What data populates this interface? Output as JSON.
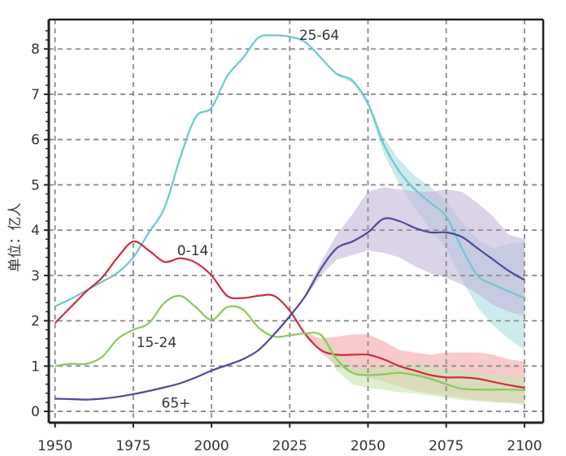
{
  "chart_data": {
    "type": "line",
    "title": "",
    "xlabel": "",
    "ylabel": "单位：亿人",
    "xlim": [
      1948,
      2106
    ],
    "ylim": [
      -0.25,
      8.65
    ],
    "xticks": [
      1950,
      1975,
      2000,
      2025,
      2050,
      2075,
      2100
    ],
    "yticks": [
      0,
      1,
      2,
      3,
      4,
      5,
      6,
      7,
      8
    ],
    "grid": true,
    "legend": "none",
    "series": [
      {
        "name": "25-64",
        "color": "#6cc7cf",
        "band_color": "#a8dde2",
        "label_at": [
          2028,
          8.2
        ],
        "x": [
          1950,
          1955,
          1960,
          1965,
          1970,
          1975,
          1980,
          1985,
          1990,
          1995,
          2000,
          2005,
          2010,
          2015,
          2020,
          2025,
          2030,
          2035,
          2040,
          2045,
          2050,
          2055,
          2060,
          2065,
          2070,
          2075,
          2080,
          2085,
          2090,
          2095,
          2100
        ],
        "y": [
          2.32,
          2.48,
          2.67,
          2.86,
          3.06,
          3.4,
          3.95,
          4.5,
          5.6,
          6.5,
          6.7,
          7.4,
          7.8,
          8.25,
          8.3,
          8.27,
          8.15,
          7.8,
          7.45,
          7.3,
          6.8,
          5.9,
          5.3,
          4.9,
          4.6,
          4.3,
          3.6,
          3.0,
          2.8,
          2.65,
          2.5
        ],
        "band": {
          "x": [
            2040,
            2045,
            2050,
            2055,
            2060,
            2065,
            2070,
            2075,
            2080,
            2085,
            2090,
            2095,
            2100
          ],
          "low": [
            7.42,
            7.25,
            6.75,
            5.7,
            5.0,
            4.5,
            4.0,
            3.6,
            2.9,
            2.3,
            1.9,
            1.6,
            1.35
          ],
          "high": [
            7.48,
            7.35,
            6.85,
            6.05,
            5.55,
            5.2,
            4.95,
            4.65,
            4.2,
            3.8,
            3.6,
            3.7,
            3.75
          ]
        }
      },
      {
        "name": "0-14",
        "color": "#cf2c40",
        "band_color": "#f3a6aa",
        "label_at": [
          1989,
          3.45
        ],
        "x": [
          1950,
          1955,
          1960,
          1965,
          1970,
          1975,
          1980,
          1985,
          1990,
          1995,
          2000,
          2005,
          2010,
          2015,
          2020,
          2025,
          2030,
          2035,
          2040,
          2045,
          2050,
          2055,
          2060,
          2065,
          2070,
          2075,
          2080,
          2085,
          2090,
          2095,
          2100
        ],
        "y": [
          1.95,
          2.3,
          2.65,
          2.95,
          3.4,
          3.75,
          3.55,
          3.3,
          3.38,
          3.28,
          3.0,
          2.55,
          2.5,
          2.55,
          2.55,
          2.22,
          1.7,
          1.35,
          1.25,
          1.25,
          1.25,
          1.15,
          1.0,
          0.9,
          0.8,
          0.75,
          0.75,
          0.72,
          0.65,
          0.58,
          0.52
        ],
        "band": {
          "x": [
            2030,
            2035,
            2040,
            2045,
            2050,
            2055,
            2060,
            2065,
            2070,
            2075,
            2080,
            2085,
            2090,
            2095,
            2100
          ],
          "low": [
            1.65,
            1.3,
            1.0,
            0.85,
            0.75,
            0.65,
            0.55,
            0.45,
            0.4,
            0.35,
            0.3,
            0.25,
            0.22,
            0.2,
            0.18
          ],
          "high": [
            1.75,
            1.6,
            1.65,
            1.7,
            1.7,
            1.55,
            1.35,
            1.3,
            1.25,
            1.3,
            1.3,
            1.3,
            1.25,
            1.15,
            1.1
          ]
        }
      },
      {
        "name": "15-24",
        "color": "#8cc859",
        "band_color": "#c8e5ad",
        "label_at": [
          1976,
          1.42
        ],
        "x": [
          1950,
          1955,
          1960,
          1965,
          1970,
          1975,
          1980,
          1985,
          1990,
          1995,
          2000,
          2005,
          2010,
          2015,
          2020,
          2025,
          2030,
          2035,
          2040,
          2045,
          2050,
          2055,
          2060,
          2065,
          2070,
          2075,
          2080,
          2085,
          2090,
          2095,
          2100
        ],
        "y": [
          1.0,
          1.05,
          1.05,
          1.2,
          1.6,
          1.8,
          1.95,
          2.4,
          2.55,
          2.3,
          2.02,
          2.3,
          2.25,
          1.85,
          1.65,
          1.68,
          1.72,
          1.68,
          1.15,
          0.85,
          0.8,
          0.82,
          0.85,
          0.8,
          0.72,
          0.6,
          0.5,
          0.48,
          0.48,
          0.48,
          0.47
        ],
        "band": {
          "x": [
            2035,
            2040,
            2045,
            2050,
            2055,
            2060,
            2065,
            2070,
            2075,
            2080,
            2085,
            2090,
            2095,
            2100
          ],
          "low": [
            1.5,
            0.9,
            0.6,
            0.52,
            0.48,
            0.42,
            0.4,
            0.35,
            0.3,
            0.25,
            0.22,
            0.2,
            0.18,
            0.15
          ],
          "high": [
            1.75,
            1.3,
            1.0,
            0.95,
            1.0,
            1.05,
            1.05,
            1.0,
            0.95,
            0.9,
            0.85,
            0.8,
            0.78,
            0.75
          ]
        }
      },
      {
        "name": "65+",
        "color": "#4f4997",
        "band_color": "#c3b5d9",
        "label_at": [
          1984,
          0.08
        ],
        "x": [
          1950,
          1955,
          1960,
          1965,
          1970,
          1975,
          1980,
          1985,
          1990,
          1995,
          2000,
          2005,
          2010,
          2015,
          2020,
          2025,
          2030,
          2035,
          2040,
          2045,
          2050,
          2055,
          2060,
          2065,
          2070,
          2075,
          2080,
          2085,
          2090,
          2095,
          2100
        ],
        "y": [
          0.28,
          0.27,
          0.26,
          0.28,
          0.32,
          0.38,
          0.45,
          0.53,
          0.62,
          0.75,
          0.9,
          1.02,
          1.15,
          1.35,
          1.7,
          2.1,
          2.55,
          3.15,
          3.6,
          3.75,
          3.95,
          4.25,
          4.2,
          4.05,
          3.95,
          3.95,
          3.85,
          3.6,
          3.35,
          3.1,
          2.9
        ],
        "band": {
          "x": [
            2030,
            2035,
            2040,
            2045,
            2050,
            2055,
            2060,
            2065,
            2070,
            2075,
            2080,
            2085,
            2090,
            2095,
            2100
          ],
          "low": [
            2.5,
            3.0,
            3.35,
            3.45,
            3.55,
            3.5,
            3.4,
            3.2,
            3.05,
            2.95,
            2.8,
            2.6,
            2.35,
            2.2,
            2.1
          ],
          "high": [
            2.6,
            3.3,
            3.9,
            4.35,
            4.85,
            4.95,
            4.9,
            4.85,
            4.85,
            4.9,
            4.85,
            4.6,
            4.3,
            3.9,
            3.8
          ]
        }
      }
    ]
  }
}
